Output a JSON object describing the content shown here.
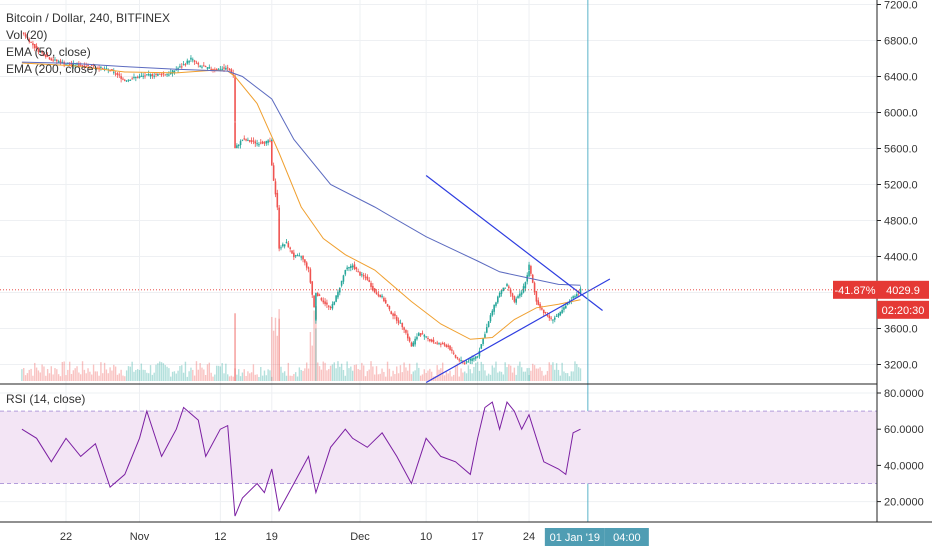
{
  "header": {
    "title": "Bitcoin / Dollar, 240, BITFINEX",
    "indicators": [
      "Vol (20)",
      "EMA (50, close)",
      "EMA (200, close)"
    ]
  },
  "rsi_panel": {
    "label": "RSI (14, close)"
  },
  "price_labels": {
    "change_pct": "-41.87%",
    "current_price": "4029.9",
    "countdown": "02:20:30"
  },
  "time_labels": {
    "cursor_date": "01 Jan '19",
    "cursor_time": "04:00"
  },
  "colors": {
    "up": "#26a69a",
    "down": "#ef5350",
    "ema50": "#f0a030",
    "ema200": "#5c6bc0",
    "trendline": "#2e3de0",
    "rsi": "#7b1fa2",
    "rsi_band": "#f3e5f5",
    "price_line": "#e53935",
    "cursor": "#5ab3c9"
  },
  "chart_data": [
    {
      "type": "candlestick",
      "title": "Bitcoin / Dollar, 240, BITFINEX",
      "x_tick_labels": [
        "22",
        "Nov",
        "12",
        "19",
        "Dec",
        "10",
        "17",
        "24"
      ],
      "y_tick_labels": [
        "7200.0",
        "6800.0",
        "6400.0",
        "6000.0",
        "5600.0",
        "5200.0",
        "4800.0",
        "4400.0",
        "4000.0",
        "3600.0",
        "3200.0"
      ],
      "ylim": [
        2980,
        7220
      ],
      "close_path": {
        "points": [
          [
            "Oct 16",
            6900
          ],
          [
            "Oct 18",
            6700
          ],
          [
            "Oct 20",
            6590
          ],
          [
            "Oct 22",
            6540
          ],
          [
            "Oct 25",
            6520
          ],
          [
            "Oct 28",
            6470
          ],
          [
            "Oct 30",
            6360
          ],
          [
            "Nov 1",
            6400
          ],
          [
            "Nov 3",
            6420
          ],
          [
            "Nov 5",
            6430
          ],
          [
            "Nov 7",
            6530
          ],
          [
            "Nov 8",
            6600
          ],
          [
            "Nov 9",
            6520
          ],
          [
            "Nov 11",
            6480
          ],
          [
            "Nov 13",
            6490
          ],
          [
            "Nov 14",
            6400
          ],
          [
            "Nov 14",
            5900
          ],
          [
            "Nov 14",
            5600
          ],
          [
            "Nov 15",
            5700
          ],
          [
            "Nov 17",
            5660
          ],
          [
            "Nov 19",
            5680
          ],
          [
            "Nov 19",
            5400
          ],
          [
            "Nov 20",
            4800
          ],
          [
            "Nov 20",
            4500
          ],
          [
            "Nov 21",
            4550
          ],
          [
            "Nov 22",
            4400
          ],
          [
            "Nov 23",
            4400
          ],
          [
            "Nov 24",
            4250
          ],
          [
            "Nov 25",
            3700
          ],
          [
            "Nov 25",
            4000
          ],
          [
            "Nov 26",
            3900
          ],
          [
            "Nov 27",
            3820
          ],
          [
            "Nov 28",
            4000
          ],
          [
            "Nov 29",
            4250
          ],
          [
            "Nov 30",
            4300
          ],
          [
            "Dec 1",
            4200
          ],
          [
            "Dec 2",
            4150
          ],
          [
            "Dec 3",
            4000
          ],
          [
            "Dec 4",
            3950
          ],
          [
            "Dec 5",
            3800
          ],
          [
            "Dec 7",
            3600
          ],
          [
            "Dec 8",
            3400
          ],
          [
            "Dec 9",
            3550
          ],
          [
            "Dec 11",
            3450
          ],
          [
            "Dec 13",
            3400
          ],
          [
            "Dec 14",
            3280
          ],
          [
            "Dec 15",
            3220
          ],
          [
            "Dec 16",
            3250
          ],
          [
            "Dec 17",
            3300
          ],
          [
            "Dec 18",
            3550
          ],
          [
            "Dec 19",
            3800
          ],
          [
            "Dec 20",
            4000
          ],
          [
            "Dec 21",
            4080
          ],
          [
            "Dec 22",
            3900
          ],
          [
            "Dec 23",
            4000
          ],
          [
            "Dec 24",
            4250
          ],
          [
            "Dec 24",
            4300
          ],
          [
            "Dec 25",
            3900
          ],
          [
            "Dec 26",
            3780
          ],
          [
            "Dec 27",
            3700
          ],
          [
            "Dec 28",
            3750
          ],
          [
            "Dec 29",
            3850
          ],
          [
            "Dec 30",
            3950
          ],
          [
            "Dec 31",
            4030
          ]
        ]
      },
      "series": [
        {
          "name": "EMA (50, close)",
          "points": [
            [
              "Oct 16",
              6550
            ],
            [
              "Oct 23",
              6520
            ],
            [
              "Oct 30",
              6450
            ],
            [
              "Nov 6",
              6440
            ],
            [
              "Nov 11",
              6470
            ],
            [
              "Nov 13",
              6460
            ],
            [
              "Nov 14",
              6400
            ],
            [
              "Nov 17",
              6100
            ],
            [
              "Nov 20",
              5550
            ],
            [
              "Nov 23",
              4950
            ],
            [
              "Nov 26",
              4600
            ],
            [
              "Nov 29",
              4420
            ],
            [
              "Dec 3",
              4250
            ],
            [
              "Dec 8",
              3900
            ],
            [
              "Dec 12",
              3650
            ],
            [
              "Dec 16",
              3480
            ],
            [
              "Dec 19",
              3500
            ],
            [
              "Dec 22",
              3700
            ],
            [
              "Dec 25",
              3830
            ],
            [
              "Dec 28",
              3870
            ],
            [
              "Dec 31",
              3920
            ]
          ]
        },
        {
          "name": "EMA (200, close)",
          "points": [
            [
              "Oct 16",
              6560
            ],
            [
              "Oct 23",
              6545
            ],
            [
              "Oct 30",
              6510
            ],
            [
              "Nov 6",
              6480
            ],
            [
              "Nov 13",
              6460
            ],
            [
              "Nov 15",
              6400
            ],
            [
              "Nov 19",
              6150
            ],
            [
              "Nov 22",
              5700
            ],
            [
              "Nov 27",
              5200
            ],
            [
              "Dec 3",
              4950
            ],
            [
              "Dec 10",
              4620
            ],
            [
              "Dec 17",
              4350
            ],
            [
              "Dec 20",
              4230
            ],
            [
              "Dec 24",
              4160
            ],
            [
              "Dec 28",
              4090
            ],
            [
              "Dec 31",
              4080
            ]
          ]
        }
      ],
      "volume_series": {
        "name": "Vol (20)"
      },
      "trendlines": [
        {
          "from": [
            "Dec 10",
            5300
          ],
          "to": [
            "Jan 3",
            3800
          ]
        },
        {
          "from": [
            "Dec 10",
            3000
          ],
          "to": [
            "Jan 4",
            4150
          ]
        }
      ],
      "price_line": 4029.9
    },
    {
      "type": "line",
      "title": "RSI (14, close)",
      "y_tick_labels": [
        "80.0000",
        "60.0000",
        "40.0000",
        "20.0000"
      ],
      "ylim": [
        8,
        84
      ],
      "bands": [
        30,
        70
      ],
      "series": [
        {
          "name": "RSI (14, close)",
          "points": [
            [
              "Oct 16",
              60
            ],
            [
              "Oct 18",
              55
            ],
            [
              "Oct 20",
              42
            ],
            [
              "Oct 22",
              55
            ],
            [
              "Oct 24",
              45
            ],
            [
              "Oct 26",
              52
            ],
            [
              "Oct 28",
              28
            ],
            [
              "Oct 30",
              35
            ],
            [
              "Nov 1",
              55
            ],
            [
              "Nov 2",
              70
            ],
            [
              "Nov 4",
              45
            ],
            [
              "Nov 6",
              60
            ],
            [
              "Nov 7",
              72
            ],
            [
              "Nov 9",
              65
            ],
            [
              "Nov 10",
              45
            ],
            [
              "Nov 12",
              60
            ],
            [
              "Nov 13",
              62
            ],
            [
              "Nov 14",
              12
            ],
            [
              "Nov 15",
              22
            ],
            [
              "Nov 17",
              30
            ],
            [
              "Nov 18",
              25
            ],
            [
              "Nov 19",
              38
            ],
            [
              "Nov 20",
              15
            ],
            [
              "Nov 22",
              30
            ],
            [
              "Nov 24",
              45
            ],
            [
              "Nov 25",
              25
            ],
            [
              "Nov 27",
              50
            ],
            [
              "Nov 28",
              55
            ],
            [
              "Nov 29",
              60
            ],
            [
              "Nov 30",
              55
            ],
            [
              "Dec 2",
              50
            ],
            [
              "Dec 4",
              58
            ],
            [
              "Dec 6",
              45
            ],
            [
              "Dec 8",
              30
            ],
            [
              "Dec 10",
              55
            ],
            [
              "Dec 12",
              45
            ],
            [
              "Dec 14",
              42
            ],
            [
              "Dec 16",
              35
            ],
            [
              "Dec 17",
              55
            ],
            [
              "Dec 18",
              72
            ],
            [
              "Dec 19",
              75
            ],
            [
              "Dec 20",
              60
            ],
            [
              "Dec 21",
              75
            ],
            [
              "Dec 22",
              70
            ],
            [
              "Dec 23",
              60
            ],
            [
              "Dec 24",
              68
            ],
            [
              "Dec 26",
              42
            ],
            [
              "Dec 28",
              38
            ],
            [
              "Dec 29",
              35
            ],
            [
              "Dec 30",
              58
            ],
            [
              "Dec 31",
              60
            ]
          ]
        }
      ]
    }
  ]
}
